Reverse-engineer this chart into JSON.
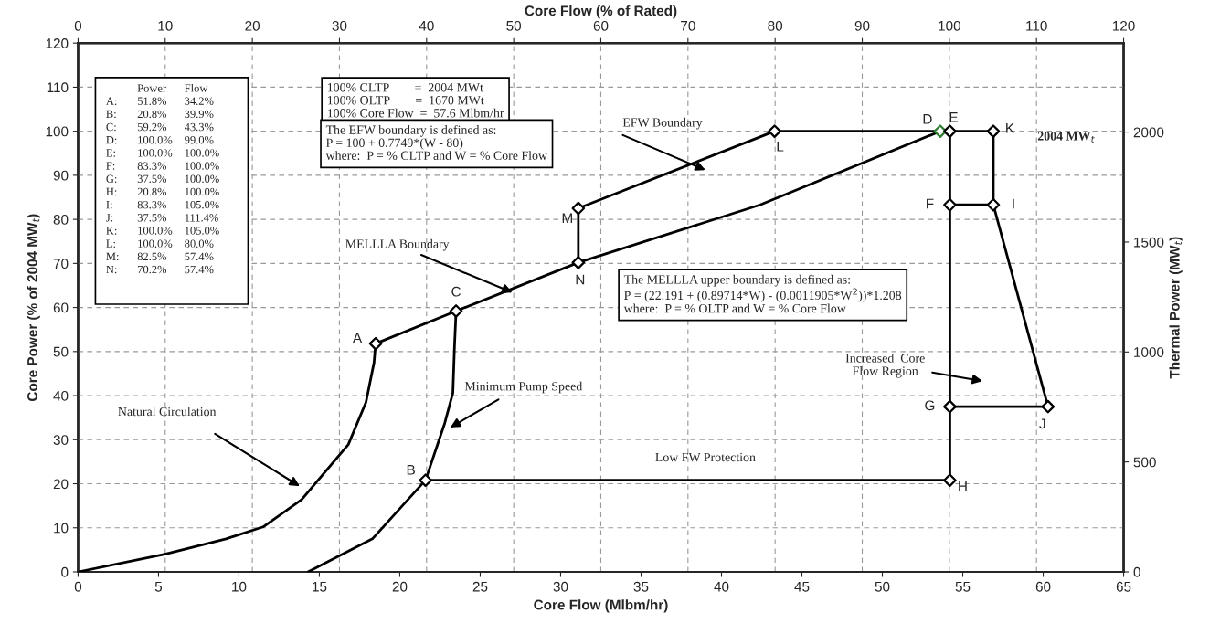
{
  "chart_data": {
    "type": "line",
    "xlabel": "Core Flow (Mlbm/hr)",
    "ylabel": "Core Power (% of 2004 MW$_{t}$)",
    "y2label": "Thermal Power (MW$_{t}$)",
    "x2label": "Core Flow (% of Rated)",
    "xlim": [
      0,
      65
    ],
    "xticks": [
      0,
      5,
      10,
      15,
      20,
      25,
      30,
      35,
      40,
      45,
      50,
      55,
      60,
      65
    ],
    "x2lim": [
      0,
      120
    ],
    "x2ticks": [
      0,
      10,
      20,
      30,
      40,
      50,
      60,
      70,
      80,
      90,
      100,
      110,
      120
    ],
    "ylim": [
      0,
      120
    ],
    "yticks": [
      0,
      10,
      20,
      30,
      40,
      50,
      60,
      70,
      80,
      90,
      100,
      110,
      120
    ],
    "y2lim": [
      0,
      2404.8
    ],
    "y2ticks": [
      0,
      500,
      1000,
      1500,
      2000
    ],
    "grid": true,
    "line_style": "solid",
    "series": [
      {
        "color": "#000000",
        "x": [
          0,
          5.4,
          9.2,
          11.5,
          13.9,
          16.8,
          17.9,
          18.4,
          18.5,
          23.5,
          31.1,
          42.4,
          53.6
        ],
        "values": [
          0,
          4.0,
          7.5,
          10.2,
          16.4,
          28.9,
          38.5,
          47.5,
          51.8,
          59.2,
          70.2,
          83.3,
          100
        ]
      },
      {
        "color": "#000000",
        "x": [
          14.3,
          18.3,
          21.6,
          22.8,
          23.3,
          23.4,
          23.5
        ],
        "values": [
          0,
          7.5,
          20.8,
          33.8,
          40.6,
          51.0,
          59.2
        ]
      },
      {
        "color": "#000000",
        "x": [
          21.6,
          54.2
        ],
        "values": [
          20.8,
          20.8
        ]
      },
      {
        "color": "#000000",
        "x": [
          31.1,
          31.1,
          43.3,
          56.9
        ],
        "values": [
          70.2,
          82.5,
          100,
          100
        ]
      },
      {
        "color": "#000000",
        "x": [
          54.2,
          54.2
        ],
        "values": [
          100,
          20.8
        ]
      },
      {
        "color": "#000000",
        "x": [
          54.2,
          56.9,
          56.9
        ],
        "values": [
          83.3,
          83.3,
          100
        ]
      },
      {
        "color": "#000000",
        "x": [
          56.9,
          60.3,
          54.2
        ],
        "values": [
          83.3,
          37.5,
          37.5
        ]
      },
      {
        "type": "scatter",
        "marker": "diamond",
        "x": [
          18.5,
          21.6,
          23.5,
          53.6,
          54.2,
          54.2,
          54.2,
          54.2,
          56.9,
          60.3,
          56.9,
          43.3,
          31.1,
          31.1
        ],
        "values": [
          51.8,
          20.8,
          59.2,
          100,
          100,
          83.3,
          37.5,
          20.8,
          83.3,
          37.5,
          100,
          100,
          82.5,
          70.2
        ],
        "colors": [
          "#000000",
          "#000000",
          "#000000",
          "#2e7d32",
          "#000000",
          "#000000",
          "#000000",
          "#000000",
          "#000000",
          "#000000",
          "#000000",
          "#000000",
          "#000000",
          "#000000"
        ],
        "value_labels": [
          "A",
          "B",
          "C",
          "D",
          "E",
          "F",
          "G",
          "H",
          "I",
          "J",
          "K",
          "L",
          "M",
          "N"
        ]
      }
    ],
    "annotations": [
      "\tPower\tFlow\nA:\t51.8%\t34.2%\nB:\t20.8%\t39.9%\nC:\t59.2%\t43.3%\nD:\t100.0%\t99.0%\nE:\t100.0%\t100.0%\nF:\t83.3%\t100.0%\nG:\t37.5%\t100.0%\nH:\t20.8%\t100.0%\nI:\t83.3%\t105.0%\nJ:\t37.5%\t111.4%\nK:\t100.0%\t105.0%\nL:\t100.0%\t80.0%\nM:\t82.5%\t57.4%\nN:\t70.2%\t57.4%",
      "100% CLTP        =  2004 MWt\n100% OLTP        =  1670 MWt\n100% Core Flow  =  57.6 Mlbm/hr",
      "The EFW boundary is defined as:\nP = 100 + 0.7749*(W - 80)\nwhere:  P = % CLTP and W = % Core Flow",
      "The MELLLA upper boundary is defined as:\nP = (22.191 + (0.89714*W) - (0.0011905*W$^{2}$))*1.208\nwhere:  P = % OLTP and W = % Core Flow",
      "2004 MW$_{t}$",
      "Natural Circulation",
      "Minimum Pump Speed",
      {
        "text": "MELLLA Boundary",
        "x": 27.0,
        "y": 63.4
      },
      "EFW Boundary",
      "Increased  Core\nFlow Region",
      {
        "text": "Low FW Protection",
        "x": 39.0,
        "y": 20.8
      }
    ]
  }
}
